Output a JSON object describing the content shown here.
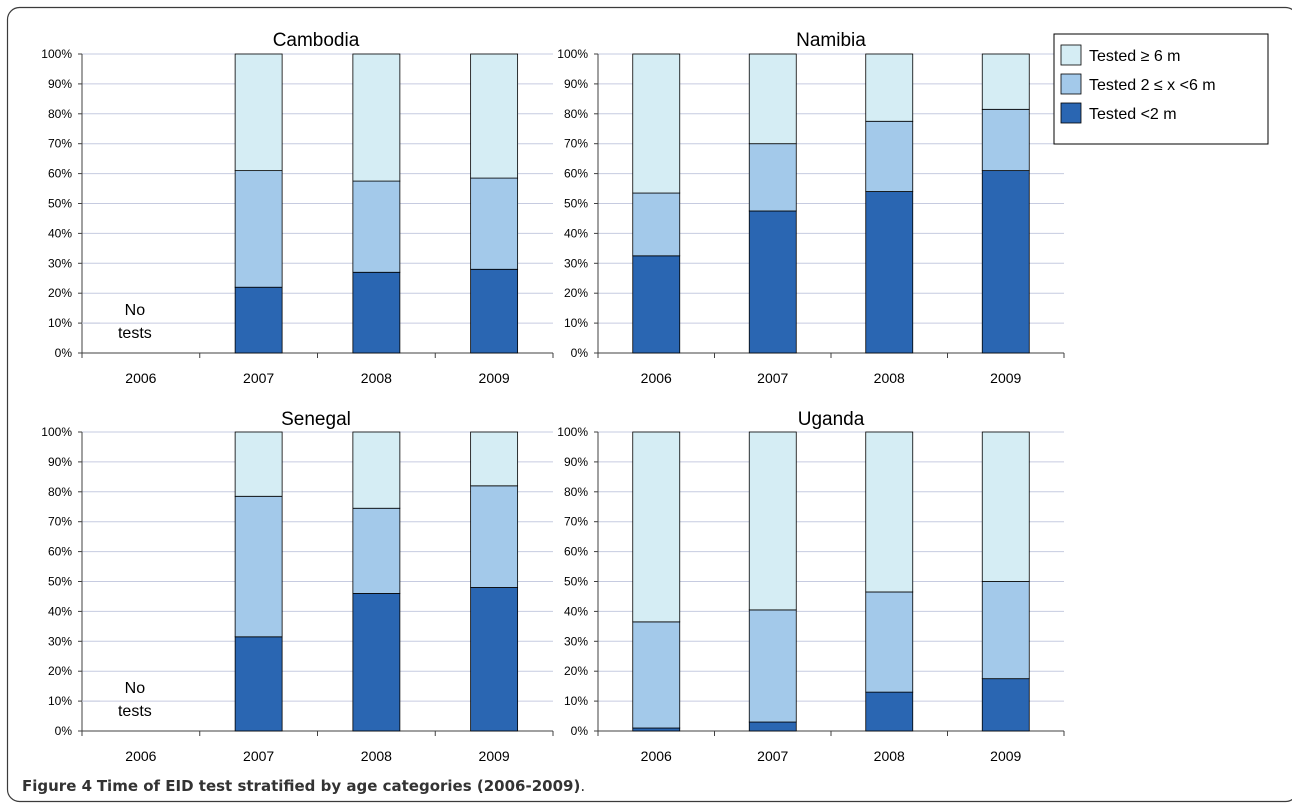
{
  "caption": {
    "label": "Figure 4",
    "title": "Time of EID test stratified by age categories (2006-2009)",
    "end": "."
  },
  "legend": {
    "position": "top-right",
    "entries": [
      {
        "key": "ge6",
        "label": "Tested ≥ 6 m"
      },
      {
        "key": "m2to6",
        "label": "Tested 2 ≤ x <6 m"
      },
      {
        "key": "lt2",
        "label": "Tested <2 m"
      }
    ]
  },
  "colors": {
    "lt2": "#2a66b2",
    "m2to6": "#a3c9ea",
    "ge6": "#d5edf4",
    "grid": "#c6cbe0",
    "axis": "#404040",
    "text": "#000000",
    "frame": "#3b3b3b"
  },
  "chart_data": [
    {
      "type": "bar",
      "stacked": true,
      "title": "Cambodia",
      "categories": [
        "2006",
        "2007",
        "2008",
        "2009"
      ],
      "ylim": [
        0,
        100
      ],
      "yticks": [
        "0%",
        "10%",
        "20%",
        "30%",
        "40%",
        "50%",
        "60%",
        "70%",
        "80%",
        "90%",
        "100%"
      ],
      "grid": true,
      "annotation": {
        "category": "2006",
        "lines": [
          "No",
          "tests"
        ]
      },
      "series": [
        {
          "name": "Tested <2 m",
          "key": "lt2",
          "values": [
            null,
            22,
            27,
            28
          ]
        },
        {
          "name": "Tested 2 ≤ x <6 m",
          "key": "m2to6",
          "values": [
            null,
            39,
            30.5,
            30.5
          ]
        },
        {
          "name": "Tested ≥ 6 m",
          "key": "ge6",
          "values": [
            null,
            39,
            42.5,
            41.5
          ]
        }
      ]
    },
    {
      "type": "bar",
      "stacked": true,
      "title": "Namibia",
      "categories": [
        "2006",
        "2007",
        "2008",
        "2009"
      ],
      "ylim": [
        0,
        100
      ],
      "yticks": [
        "0%",
        "10%",
        "20%",
        "30%",
        "40%",
        "50%",
        "60%",
        "70%",
        "80%",
        "90%",
        "100%"
      ],
      "grid": true,
      "series": [
        {
          "name": "Tested <2 m",
          "key": "lt2",
          "values": [
            32.5,
            47.5,
            54,
            61
          ]
        },
        {
          "name": "Tested 2 ≤ x <6 m",
          "key": "m2to6",
          "values": [
            21,
            22.5,
            23.5,
            20.5
          ]
        },
        {
          "name": "Tested ≥ 6 m",
          "key": "ge6",
          "values": [
            46.5,
            30,
            22.5,
            18.5
          ]
        }
      ]
    },
    {
      "type": "bar",
      "stacked": true,
      "title": "Senegal",
      "categories": [
        "2006",
        "2007",
        "2008",
        "2009"
      ],
      "ylim": [
        0,
        100
      ],
      "yticks": [
        "0%",
        "10%",
        "20%",
        "30%",
        "40%",
        "50%",
        "60%",
        "70%",
        "80%",
        "90%",
        "100%"
      ],
      "grid": true,
      "annotation": {
        "category": "2006",
        "lines": [
          "No",
          "tests"
        ]
      },
      "series": [
        {
          "name": "Tested <2 m",
          "key": "lt2",
          "values": [
            null,
            31.5,
            46,
            48
          ]
        },
        {
          "name": "Tested 2 ≤ x <6 m",
          "key": "m2to6",
          "values": [
            null,
            47,
            28.5,
            34
          ]
        },
        {
          "name": "Tested ≥ 6 m",
          "key": "ge6",
          "values": [
            null,
            21.5,
            25.5,
            18
          ]
        }
      ]
    },
    {
      "type": "bar",
      "stacked": true,
      "title": "Uganda",
      "categories": [
        "2006",
        "2007",
        "2008",
        "2009"
      ],
      "ylim": [
        0,
        100
      ],
      "yticks": [
        "0%",
        "10%",
        "20%",
        "30%",
        "40%",
        "50%",
        "60%",
        "70%",
        "80%",
        "90%",
        "100%"
      ],
      "grid": true,
      "series": [
        {
          "name": "Tested <2 m",
          "key": "lt2",
          "values": [
            1,
            3,
            13,
            17.5
          ]
        },
        {
          "name": "Tested 2 ≤ x <6 m",
          "key": "m2to6",
          "values": [
            35.5,
            37.5,
            33.5,
            32.5
          ]
        },
        {
          "name": "Tested ≥ 6 m",
          "key": "ge6",
          "values": [
            63.5,
            59.5,
            53.5,
            50
          ]
        }
      ]
    }
  ]
}
